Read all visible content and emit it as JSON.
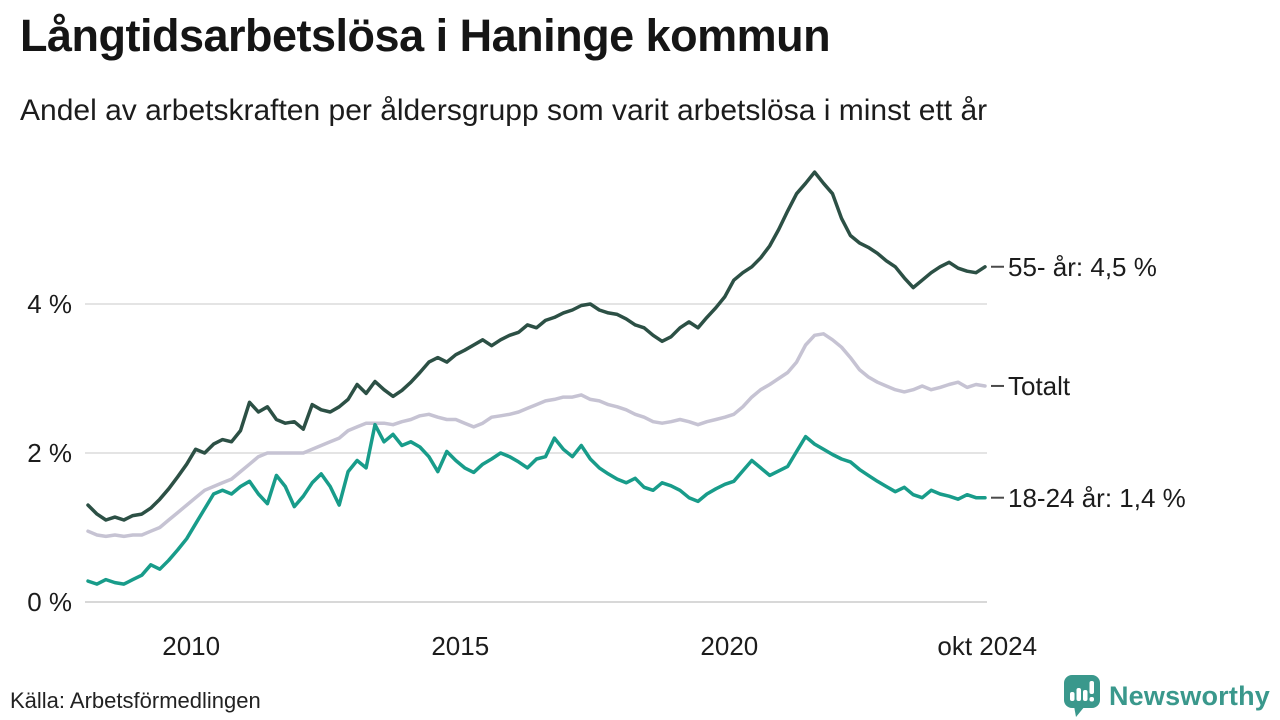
{
  "header": {
    "title": "Långtidsarbetslösa i Haninge kommun",
    "subtitle": "Andel av arbetskraften per åldersgrupp som varit arbetslösa i minst ett år"
  },
  "footer": {
    "source": "Källa: Arbetsförmedlingen",
    "brand_name": "Newsworthy",
    "brand_color": "#3a988c"
  },
  "chart_data": {
    "type": "line",
    "title": "Långtidsarbetslösa i Haninge kommun",
    "subtitle": "Andel av arbetskraften per åldersgrupp som varit arbetslösa i minst ett år",
    "unit": "% av arbetskraften",
    "x_start_year_fraction": 2008.0833,
    "x_step_months": 2,
    "x_end_year_fraction": 2024.75,
    "ylim": [
      0,
      6.0
    ],
    "grid": "horizontal",
    "gridline_color": "#e4e4e4",
    "axisline_color": "#d8d8d8",
    "end_label_connector_color": "#4a4a4a",
    "yticks": [
      {
        "v": 0,
        "label": "0 %"
      },
      {
        "v": 2,
        "label": "2 %"
      },
      {
        "v": 4,
        "label": "4 %"
      }
    ],
    "xticks": [
      {
        "t": 2010,
        "label": "2010"
      },
      {
        "t": 2015,
        "label": "2015"
      },
      {
        "t": 2020,
        "label": "2020"
      },
      {
        "t": 2024.7917,
        "label": "okt 2024"
      }
    ],
    "series": [
      {
        "name": "55- år",
        "end_label": "55- år: 4,5 %",
        "end_value_label": "4,5 %",
        "color": "#2c5045",
        "values": [
          1.3,
          1.18,
          1.1,
          1.14,
          1.1,
          1.16,
          1.18,
          1.26,
          1.38,
          1.52,
          1.68,
          1.85,
          2.05,
          2.0,
          2.12,
          2.18,
          2.15,
          2.3,
          2.68,
          2.55,
          2.62,
          2.45,
          2.4,
          2.42,
          2.32,
          2.65,
          2.58,
          2.55,
          2.62,
          2.72,
          2.92,
          2.8,
          2.96,
          2.85,
          2.76,
          2.84,
          2.95,
          3.08,
          3.22,
          3.28,
          3.22,
          3.32,
          3.38,
          3.45,
          3.52,
          3.44,
          3.52,
          3.58,
          3.62,
          3.72,
          3.68,
          3.78,
          3.82,
          3.88,
          3.92,
          3.98,
          4.0,
          3.92,
          3.88,
          3.86,
          3.8,
          3.72,
          3.68,
          3.58,
          3.5,
          3.56,
          3.68,
          3.76,
          3.68,
          3.82,
          3.95,
          4.1,
          4.32,
          4.42,
          4.5,
          4.62,
          4.78,
          5.0,
          5.25,
          5.48,
          5.62,
          5.77,
          5.62,
          5.48,
          5.15,
          4.92,
          4.82,
          4.76,
          4.68,
          4.58,
          4.5,
          4.35,
          4.22,
          4.32,
          4.42,
          4.5,
          4.56,
          4.48,
          4.44,
          4.42,
          4.5
        ]
      },
      {
        "name": "Totalt",
        "end_label": "Totalt",
        "end_value_label": "",
        "color": "#c6c3d3",
        "values": [
          0.95,
          0.9,
          0.88,
          0.9,
          0.88,
          0.9,
          0.9,
          0.95,
          1.0,
          1.1,
          1.2,
          1.3,
          1.4,
          1.5,
          1.55,
          1.6,
          1.65,
          1.75,
          1.85,
          1.95,
          2.0,
          2.0,
          2.0,
          2.0,
          2.0,
          2.05,
          2.1,
          2.15,
          2.2,
          2.3,
          2.35,
          2.4,
          2.4,
          2.4,
          2.38,
          2.42,
          2.45,
          2.5,
          2.52,
          2.48,
          2.45,
          2.45,
          2.4,
          2.35,
          2.4,
          2.48,
          2.5,
          2.52,
          2.55,
          2.6,
          2.65,
          2.7,
          2.72,
          2.75,
          2.75,
          2.78,
          2.72,
          2.7,
          2.65,
          2.62,
          2.58,
          2.52,
          2.48,
          2.42,
          2.4,
          2.42,
          2.45,
          2.42,
          2.38,
          2.42,
          2.45,
          2.48,
          2.52,
          2.62,
          2.75,
          2.85,
          2.92,
          3.0,
          3.08,
          3.22,
          3.45,
          3.58,
          3.6,
          3.52,
          3.42,
          3.28,
          3.12,
          3.02,
          2.95,
          2.9,
          2.85,
          2.82,
          2.85,
          2.9,
          2.85,
          2.88,
          2.92,
          2.95,
          2.88,
          2.92,
          2.9
        ]
      },
      {
        "name": "18-24 år",
        "end_label": "18-24 år: 1,4 %",
        "end_value_label": "1,4 %",
        "color": "#189c8a",
        "values": [
          0.28,
          0.24,
          0.3,
          0.26,
          0.24,
          0.3,
          0.36,
          0.5,
          0.44,
          0.56,
          0.7,
          0.85,
          1.05,
          1.25,
          1.45,
          1.5,
          1.45,
          1.55,
          1.62,
          1.45,
          1.32,
          1.7,
          1.55,
          1.28,
          1.42,
          1.6,
          1.72,
          1.55,
          1.3,
          1.75,
          1.9,
          1.8,
          2.38,
          2.15,
          2.25,
          2.1,
          2.15,
          2.08,
          1.95,
          1.75,
          2.02,
          1.9,
          1.8,
          1.74,
          1.85,
          1.92,
          2.0,
          1.95,
          1.88,
          1.8,
          1.92,
          1.95,
          2.2,
          2.05,
          1.95,
          2.1,
          1.92,
          1.8,
          1.72,
          1.65,
          1.6,
          1.66,
          1.54,
          1.5,
          1.6,
          1.56,
          1.5,
          1.4,
          1.35,
          1.45,
          1.52,
          1.58,
          1.62,
          1.76,
          1.9,
          1.8,
          1.7,
          1.76,
          1.82,
          2.02,
          2.22,
          2.12,
          2.05,
          1.98,
          1.92,
          1.88,
          1.78,
          1.7,
          1.62,
          1.55,
          1.48,
          1.54,
          1.44,
          1.4,
          1.5,
          1.45,
          1.42,
          1.38,
          1.44,
          1.4,
          1.4
        ]
      }
    ]
  }
}
